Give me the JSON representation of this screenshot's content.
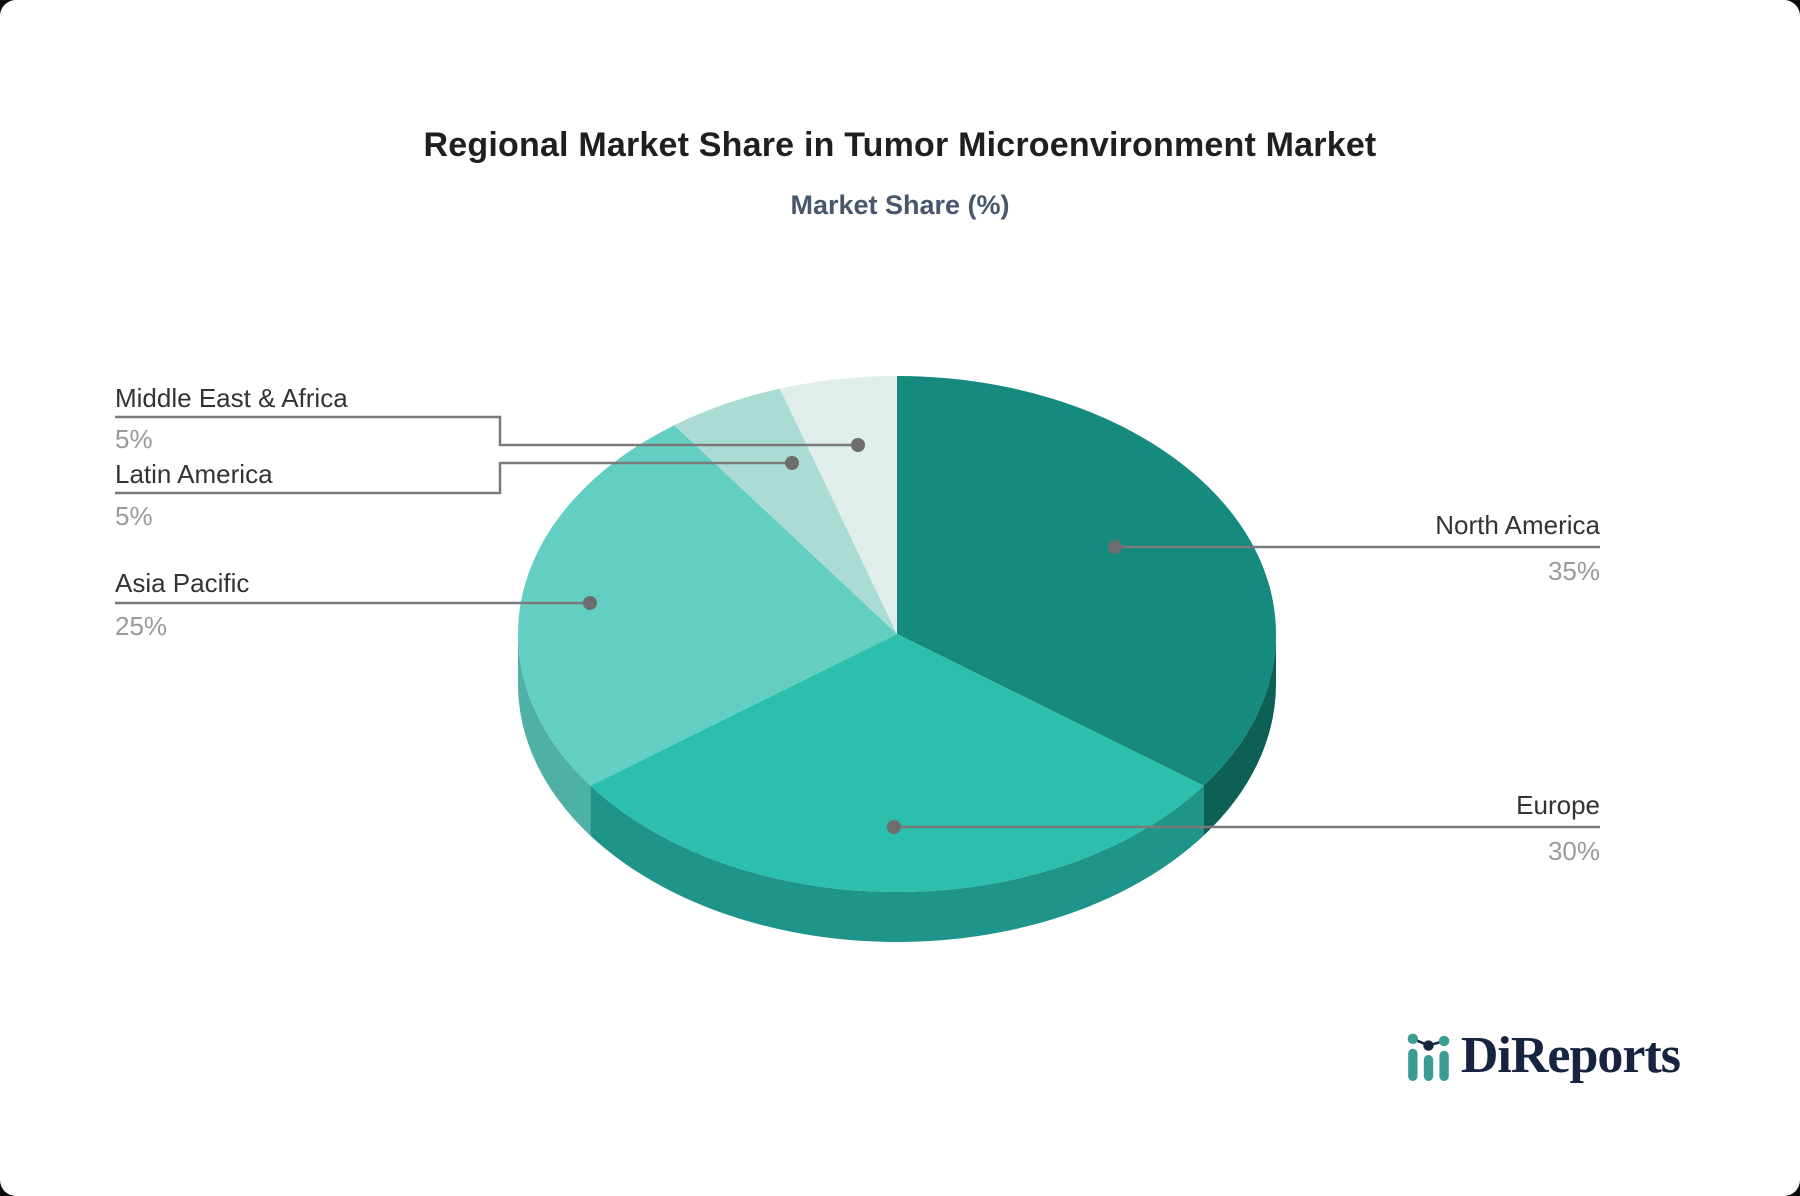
{
  "header": {
    "title": "Regional Market Share in Tumor Microenvironment Market",
    "subtitle": "Market Share (%)"
  },
  "brand": {
    "name": "DiReports"
  },
  "chart_data": {
    "type": "pie",
    "title": "Regional Market Share in Tumor Microenvironment Market",
    "subtitle": "Market Share (%)",
    "unit": "percent",
    "style": "3d-pie",
    "start_angle": "12-oclock",
    "direction": "clockwise",
    "slices": [
      {
        "name": "North America",
        "value": 35,
        "pct_label": "35%",
        "color": "#168a7e",
        "side_color": "#0d6056"
      },
      {
        "name": "Europe",
        "value": 30,
        "pct_label": "30%",
        "color": "#2dbfae",
        "side_color": "#1f948a"
      },
      {
        "name": "Asia Pacific",
        "value": 25,
        "pct_label": "25%",
        "color": "#63cfc2",
        "side_color": "#4fb0a5"
      },
      {
        "name": "Latin America",
        "value": 5,
        "pct_label": "5%",
        "color": "#aadcd3",
        "side_color": "#7fbfb4"
      },
      {
        "name": "Middle East & Africa",
        "value": 5,
        "pct_label": "5%",
        "color": "#dfeeea",
        "side_color": "#b8d4cd"
      }
    ],
    "leader_line_color": "#7a7a7a",
    "leader_dot_color": "#6d6d6d",
    "label_text_color": "#333333",
    "pct_text_color": "#9a9a9a",
    "legend_position": "callout-labels"
  }
}
